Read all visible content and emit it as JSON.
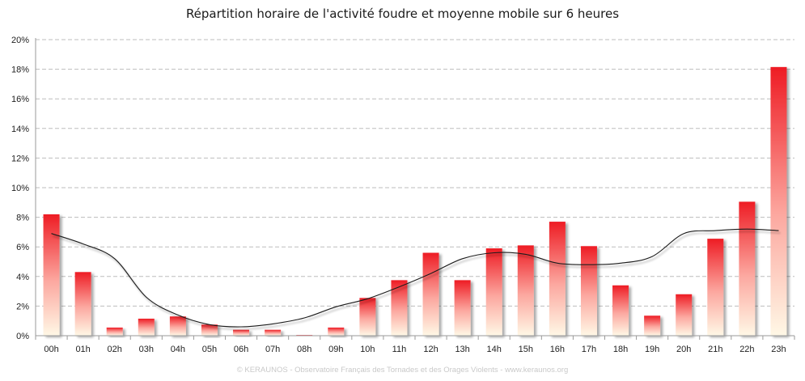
{
  "chart_data": {
    "type": "bar",
    "title": "Répartition horaire de l'activité foudre et moyenne mobile sur 6 heures",
    "categories": [
      "00h",
      "01h",
      "02h",
      "03h",
      "04h",
      "05h",
      "06h",
      "07h",
      "08h",
      "09h",
      "10h",
      "11h",
      "12h",
      "13h",
      "14h",
      "15h",
      "16h",
      "17h",
      "18h",
      "19h",
      "20h",
      "21h",
      "22h",
      "23h"
    ],
    "series": [
      {
        "values": [
          8.2,
          4.3,
          0.55,
          1.15,
          1.3,
          0.75,
          0.4,
          0.4,
          0.05,
          0.55,
          2.55,
          3.75,
          5.6,
          3.75,
          5.9,
          6.1,
          7.7,
          6.05,
          3.4,
          1.35,
          2.8,
          6.55,
          9.05,
          18.15
        ],
        "color_top": "#ee1c24",
        "color_bottom": "#fff8e6"
      }
    ],
    "moving_average": {
      "values": [
        6.9,
        6.2,
        5.2,
        2.6,
        1.4,
        0.75,
        0.6,
        0.8,
        1.2,
        1.95,
        2.5,
        3.3,
        4.2,
        5.2,
        5.6,
        5.5,
        4.9,
        4.8,
        4.9,
        5.35,
        6.9,
        7.1,
        7.2,
        7.1
      ],
      "color": "#1a1a1a"
    },
    "ylim": [
      0,
      20
    ],
    "yticks": [
      0,
      2,
      4,
      6,
      8,
      10,
      12,
      14,
      16,
      18,
      20
    ],
    "ytick_format": "{v}%",
    "xlabel": "",
    "ylabel": "",
    "grid": true,
    "legend": false
  },
  "footer": "© KERAUNOS - Observatoire Français des Tornades et des Orages Violents - www.keraunos.org"
}
